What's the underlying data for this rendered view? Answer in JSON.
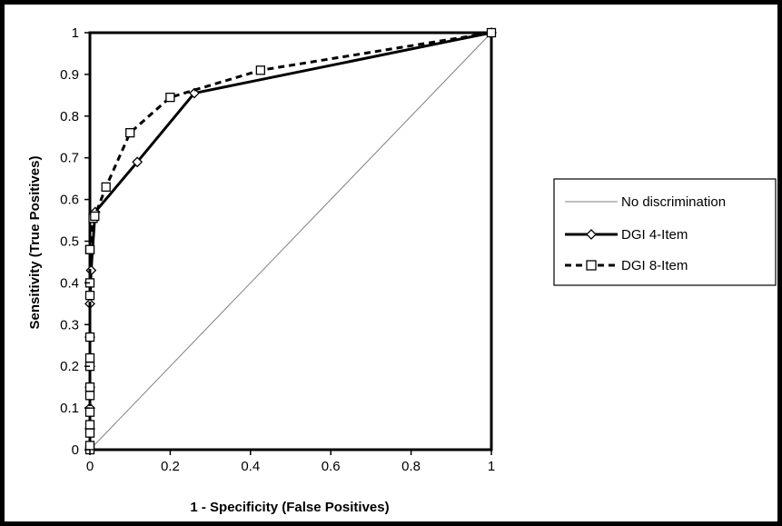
{
  "chart_data": {
    "type": "line",
    "title": "",
    "xlabel": "1 - Specificity (False Positives)",
    "ylabel": "Sensitivity (True Positives)",
    "xlim": [
      0,
      1
    ],
    "ylim": [
      0,
      1
    ],
    "x_ticks": [
      "0",
      "0.2",
      "0.4",
      "0.6",
      "0.8",
      "1"
    ],
    "y_ticks": [
      "0",
      "0.1",
      "0.2",
      "0.3",
      "0.4",
      "0.5",
      "0.6",
      "0.7",
      "0.8",
      "0.9",
      "1"
    ],
    "grid": false,
    "legend_position": "right",
    "series": [
      {
        "name": "No discrimination",
        "color": "#808080",
        "line_style": "solid-thin",
        "marker": "none",
        "x": [
          0,
          1
        ],
        "y": [
          0,
          1
        ]
      },
      {
        "name": "DGI 4-Item",
        "color": "#000000",
        "line_style": "solid-thick",
        "marker": "diamond",
        "x": [
          0,
          0,
          0,
          0,
          0,
          0,
          0,
          0.003,
          0.013,
          0.118,
          0.26,
          1
        ],
        "y": [
          0,
          0.05,
          0.1,
          0.15,
          0.2,
          0.27,
          0.35,
          0.43,
          0.57,
          0.69,
          0.855,
          1
        ]
      },
      {
        "name": "DGI 8-Item",
        "color": "#000000",
        "line_style": "dashed",
        "marker": "square",
        "x": [
          0,
          0,
          0,
          0,
          0,
          0,
          0,
          0,
          0,
          0,
          0,
          0,
          0,
          0,
          0.008,
          0.012,
          0.04,
          0.1,
          0.2,
          0.425,
          1
        ],
        "y": [
          0,
          0.01,
          0.04,
          0.06,
          0.09,
          0.13,
          0.15,
          0.2,
          0.22,
          0.27,
          0.37,
          0.4,
          0.48,
          0.48,
          0.555,
          0.56,
          0.63,
          0.76,
          0.845,
          0.91,
          1
        ]
      }
    ]
  }
}
